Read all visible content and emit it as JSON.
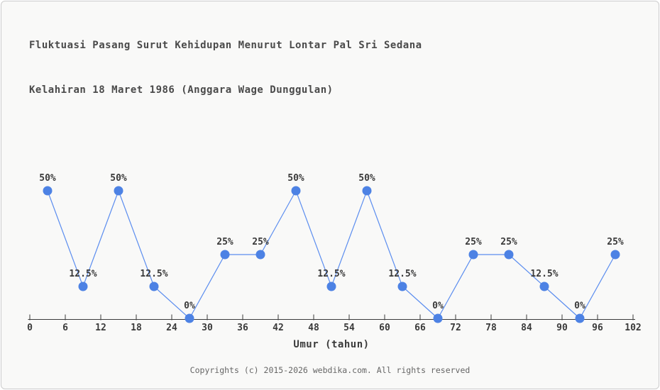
{
  "page": {
    "background": "#f9f9f8",
    "border_color": "#cccccc"
  },
  "title": {
    "line1": "Fluktuasi Pasang Surut Kehidupan Menurut Lontar Pal Sri Sedana",
    "line2": "Kelahiran 18 Maret 1986 (Anggara Wage Dunggulan)"
  },
  "footer": {
    "copyright": "Copyrights (c) 2015-2026 webdika.com. All rights reserved"
  },
  "chart_data": {
    "type": "line",
    "title": "Fluktuasi Pasang Surut Kehidupan Menurut Lontar Pal Sri Sedana Kelahiran 18 Maret 1986 (Anggara Wage Dunggulan)",
    "xlabel": "Umur (tahun)",
    "ylabel": "",
    "x": [
      3,
      9,
      15,
      21,
      27,
      33,
      39,
      45,
      51,
      57,
      63,
      69,
      75,
      81,
      87,
      93,
      99
    ],
    "values": [
      50,
      12.5,
      50,
      12.5,
      0,
      25,
      25,
      50,
      12.5,
      50,
      12.5,
      0,
      25,
      25,
      12.5,
      0,
      25
    ],
    "point_labels": [
      "50%",
      "12.5%",
      "50%",
      "12.5%",
      "0%",
      "25%",
      "25%",
      "50%",
      "12.5%",
      "50%",
      "12.5%",
      "0%",
      "25%",
      "25%",
      "12.5%",
      "0%",
      "25%"
    ],
    "x_ticks": [
      0,
      6,
      12,
      18,
      24,
      30,
      36,
      42,
      48,
      54,
      60,
      66,
      72,
      78,
      84,
      90,
      96,
      102
    ],
    "xlim": [
      0,
      102
    ],
    "ylim": [
      0,
      50
    ],
    "grid": false,
    "legend": "none",
    "colors": {
      "marker": "#4d82e4",
      "line": "#5b8def",
      "axis": "#3a3a3a",
      "label": "#3a3a3a"
    }
  }
}
